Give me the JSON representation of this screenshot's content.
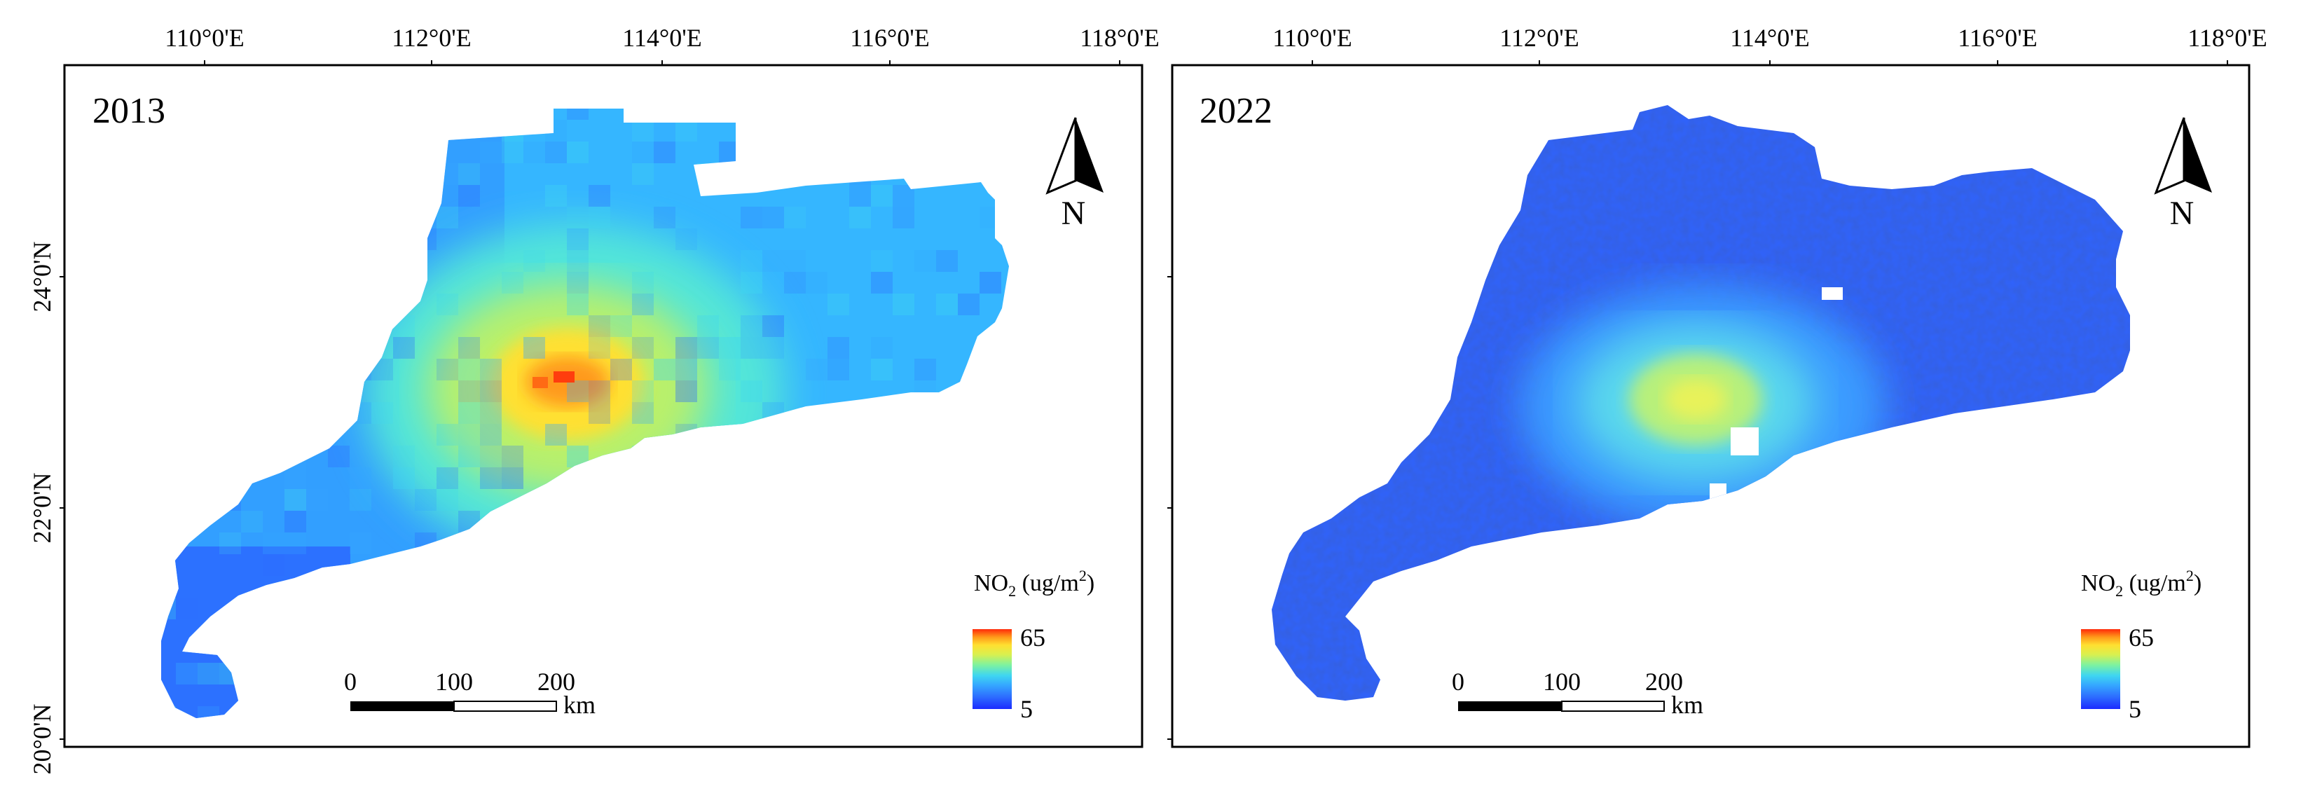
{
  "figure": {
    "panels": [
      {
        "year": "2013",
        "lon_labels": [
          "110°0'E",
          "112°0'E",
          "114°0'E",
          "116°0'E",
          "118°0'E"
        ],
        "lat_labels": [
          "24°0'N",
          "22°0'N",
          "20°0'N"
        ],
        "north_label": "N",
        "legend_title_main": "NO",
        "legend_title_sub": "2",
        "legend_title_unit": " (ug/m",
        "legend_title_sup": "2",
        "legend_title_close": ")",
        "legend_max": "65",
        "legend_min": "5",
        "scale_labels": [
          "0",
          "100",
          "200"
        ],
        "scale_unit": "km",
        "style": "coarse"
      },
      {
        "year": "2022",
        "lon_labels": [
          "110°0'E",
          "112°0'E",
          "114°0'E",
          "116°0'E",
          "118°0'E"
        ],
        "lat_labels": [],
        "north_label": "N",
        "legend_title_main": "NO",
        "legend_title_sub": "2",
        "legend_title_unit": " (ug/m",
        "legend_title_sup": "2",
        "legend_title_close": ")",
        "legend_max": "65",
        "legend_min": "5",
        "scale_labels": [
          "0",
          "100",
          "200"
        ],
        "scale_unit": "km",
        "style": "fine"
      }
    ],
    "colormap": [
      "#1c2bff",
      "#2d6cff",
      "#35a8ff",
      "#3fd6f0",
      "#7df2a0",
      "#d8f050",
      "#ffe030",
      "#ff9a1a",
      "#ff2a0a"
    ],
    "no_data_color": "#ffffff"
  }
}
